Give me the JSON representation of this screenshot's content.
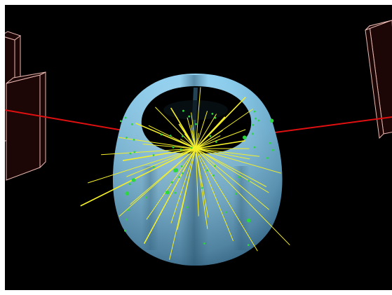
{
  "scene": {
    "subject": "particle-collision-event-display",
    "colors": {
      "background": "#000000",
      "frame": "#ffffff",
      "detector_body": "#8fd0f0",
      "detector_dark": "#3a6f8c",
      "tracks": "#f4f02a",
      "hits": "#2bd93b",
      "beam_line": "#e01010",
      "muon_chamber_fill": "#1c0606",
      "muon_chamber_edge": "#e8b8b0"
    },
    "track_count": 48,
    "hit_count": 60
  }
}
